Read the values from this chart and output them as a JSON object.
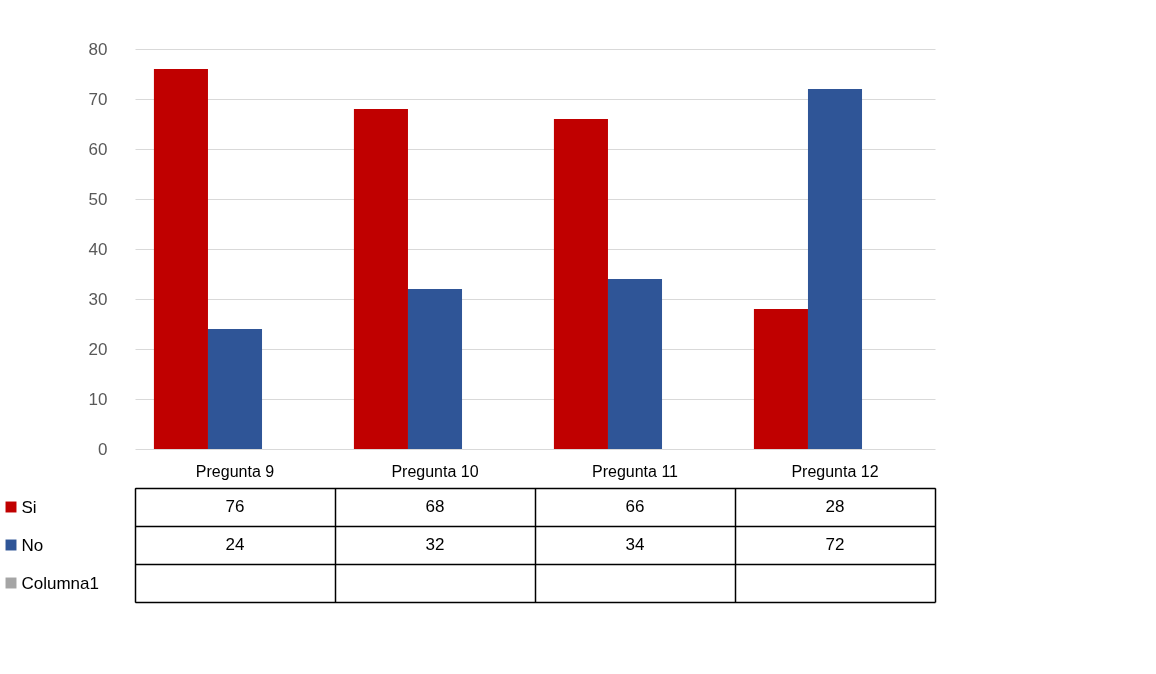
{
  "chart_data": {
    "type": "bar",
    "categories": [
      "Pregunta 9",
      "Pregunta 10",
      "Pregunta 11",
      "Pregunta 12"
    ],
    "series": [
      {
        "name": "Si",
        "color": "#c00000",
        "values": [
          76,
          68,
          66,
          28
        ]
      },
      {
        "name": "No",
        "color": "#2f5597",
        "values": [
          24,
          32,
          34,
          72
        ]
      },
      {
        "name": "Columna1",
        "color": "#a5a5a5",
        "values": [
          null,
          null,
          null,
          null
        ]
      }
    ],
    "ylim": [
      0,
      80
    ],
    "yticks": [
      0,
      10,
      20,
      30,
      40,
      50,
      60,
      70,
      80
    ],
    "grid": "y",
    "legend": "bottom",
    "data_labels": true
  }
}
